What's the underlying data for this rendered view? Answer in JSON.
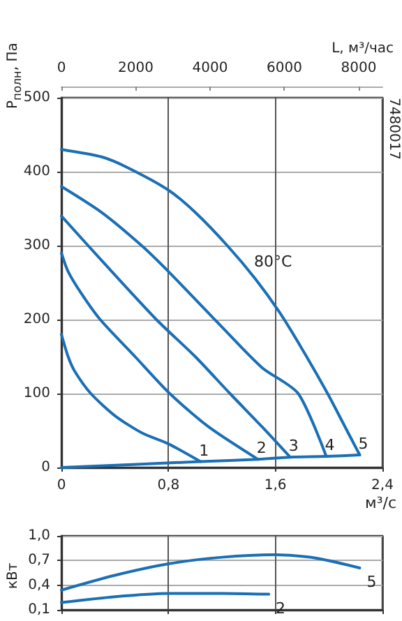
{
  "chart_data": [
    {
      "type": "line",
      "xlabel": "м³/с",
      "ylabel": "P$_{полн}$, Па",
      "x2label": "L, м³/час",
      "xlim": [
        0,
        2.4
      ],
      "xticks": [
        0,
        {
          "value": 0.8,
          "label": "0,8"
        },
        {
          "value": 1.6,
          "label": "1,6"
        },
        {
          "value": 2.4,
          "label": "2,4"
        }
      ],
      "x2lim": [
        0,
        8640
      ],
      "x2ticks": [
        0,
        2000,
        4000,
        6000,
        8000
      ],
      "ylim": [
        0,
        500
      ],
      "yticks": [
        0,
        100,
        200,
        300,
        400,
        500
      ],
      "grid": true,
      "marker": "none",
      "line_style": "solid",
      "series": [
        {
          "name": "1",
          "color": "#1a6fb5",
          "x": [
            0,
            0.05,
            0.1,
            0.22,
            0.4,
            0.6,
            0.8,
            1.04
          ],
          "values": [
            180,
            150,
            130,
            100,
            70,
            47,
            32,
            8
          ]
        },
        {
          "name": "2",
          "color": "#1a6fb5",
          "x": [
            0,
            0.05,
            0.15,
            0.29,
            0.55,
            0.81,
            1.1,
            1.47
          ],
          "values": [
            290,
            265,
            235,
            200,
            150,
            100,
            55,
            11
          ]
        },
        {
          "name": "3",
          "color": "#1a6fb5",
          "x": [
            0,
            0.3,
            0.71,
            1.0,
            1.26,
            1.5,
            1.71
          ],
          "values": [
            340,
            280,
            200,
            150,
            100,
            55,
            14
          ]
        },
        {
          "name": "4",
          "color": "#1a6fb5",
          "x": [
            0,
            0.3,
            0.6,
            0.8,
            1.2,
            1.5,
            1.77,
            1.98
          ],
          "values": [
            380,
            345,
            300,
            265,
            190,
            135,
            100,
            15
          ]
        },
        {
          "name": "5",
          "color": "#1a6fb5",
          "x": [
            0,
            0.3,
            0.5,
            0.8,
            1.0,
            1.24,
            1.45,
            1.63,
            1.8,
            1.99,
            2.1,
            2.23
          ],
          "values": [
            430,
            420,
            405,
            375,
            345,
            300,
            255,
            210,
            160,
            100,
            62,
            17
          ]
        },
        {
          "color": "#1a6fb5",
          "x": [
            0,
            1.04,
            1.47,
            1.71,
            1.98,
            2.23
          ],
          "values": [
            0,
            8,
            11,
            14,
            15,
            17
          ]
        }
      ],
      "annotations": [
        "80°C",
        "7480017"
      ]
    },
    {
      "type": "line",
      "ylabel": "кВт",
      "xlim": [
        0,
        2.4
      ],
      "xticks": [
        0,
        0.8,
        1.6,
        2.4
      ],
      "ylim": [
        0.1,
        1.0
      ],
      "yticks": [
        {
          "value": 0.1,
          "label": "0,1"
        },
        {
          "value": 0.4,
          "label": "0,4"
        },
        {
          "value": 0.7,
          "label": "0,7"
        },
        {
          "value": 1.0,
          "label": "1,0"
        }
      ],
      "tick_labels": "y",
      "grid": true,
      "marker": "none",
      "line_style": "solid",
      "series": [
        {
          "name": "5",
          "color": "#1a6fb5",
          "x": [
            0,
            0.4,
            0.8,
            1.2,
            1.6,
            1.9,
            2.23
          ],
          "values": [
            0.34,
            0.52,
            0.66,
            0.74,
            0.77,
            0.73,
            0.61
          ]
        },
        {
          "name": "2",
          "color": "#1a6fb5",
          "x": [
            0,
            0.4,
            0.8,
            1.2,
            1.55
          ],
          "values": [
            0.19,
            0.26,
            0.3,
            0.3,
            0.29
          ]
        }
      ]
    }
  ]
}
